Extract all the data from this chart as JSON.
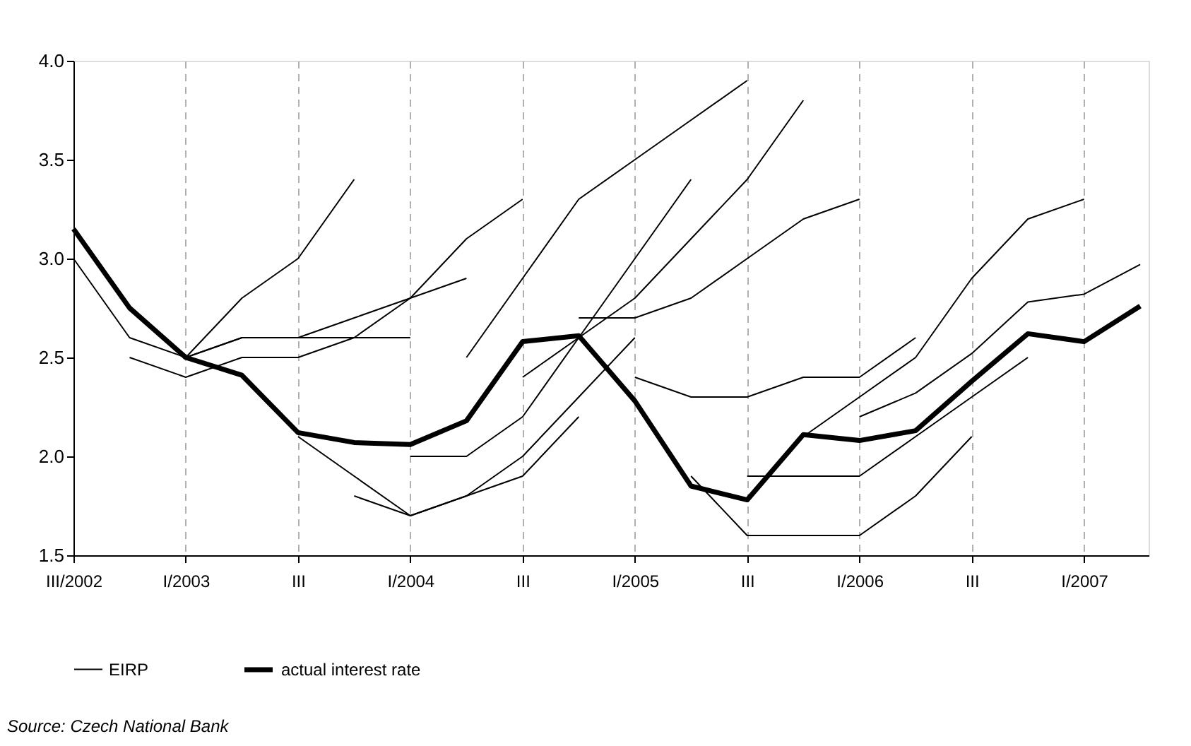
{
  "chart_data": {
    "type": "line",
    "categories": [
      "III/2002",
      null,
      "I/2003",
      null,
      "III",
      null,
      "I/2004",
      null,
      "III",
      null,
      "I/2005",
      null,
      "III",
      null,
      "I/2006",
      null,
      "III",
      null,
      "I/2007",
      null
    ],
    "ylim": [
      1.5,
      4.0
    ],
    "yticks": [
      1.5,
      {
        "value": 2,
        "label": "2.0"
      },
      2.5,
      {
        "value": 3,
        "label": "3.0"
      },
      3.5,
      {
        "value": 4,
        "label": "4.0"
      }
    ],
    "grid": "x",
    "legend": "bottom",
    "annotations": [
      "Source: Czech National Bank"
    ],
    "series": [
      {
        "name": "EIRP",
        "color": "#000000",
        "values": [
          3.0,
          2.6,
          2.5,
          2.6,
          2.6,
          2.6,
          2.6,
          null,
          null,
          null,
          null,
          null,
          null,
          null,
          null,
          null,
          null,
          null,
          null,
          null
        ]
      },
      {
        "color": "#000000",
        "values": [
          null,
          2.5,
          2.4,
          2.5,
          2.5,
          2.6,
          2.8,
          3.1,
          3.3,
          null,
          null,
          null,
          null,
          null,
          null,
          null,
          null,
          null,
          null,
          null
        ]
      },
      {
        "color": "#000000",
        "values": [
          null,
          null,
          2.5,
          2.8,
          3.0,
          3.4,
          null,
          null,
          null,
          null,
          null,
          null,
          null,
          null,
          null,
          null,
          null,
          null,
          null,
          null
        ]
      },
      {
        "color": "#000000",
        "values": [
          null,
          null,
          2.5,
          2.6,
          2.6,
          2.7,
          2.8,
          2.9,
          null,
          null,
          null,
          null,
          null,
          null,
          null,
          null,
          null,
          null,
          null,
          null
        ]
      },
      {
        "color": "#000000",
        "values": [
          null,
          null,
          null,
          null,
          2.1,
          1.9,
          1.7,
          1.8,
          1.9,
          2.2,
          null,
          null,
          null,
          null,
          null,
          null,
          null,
          null,
          null,
          null
        ]
      },
      {
        "color": "#000000",
        "values": [
          null,
          null,
          null,
          null,
          null,
          1.8,
          1.7,
          1.8,
          2.0,
          2.3,
          2.6,
          null,
          null,
          null,
          null,
          null,
          null,
          null,
          null,
          null
        ]
      },
      {
        "color": "#000000",
        "values": [
          null,
          null,
          null,
          null,
          null,
          null,
          2.0,
          2.0,
          2.2,
          2.6,
          3.0,
          3.4,
          null,
          null,
          null,
          null,
          null,
          null,
          null,
          null
        ]
      },
      {
        "color": "#000000",
        "values": [
          null,
          null,
          null,
          null,
          null,
          null,
          null,
          2.5,
          2.9,
          3.3,
          3.5,
          3.7,
          3.9,
          null,
          null,
          null,
          null,
          null,
          null,
          null
        ]
      },
      {
        "color": "#000000",
        "values": [
          null,
          null,
          null,
          null,
          null,
          null,
          null,
          null,
          2.4,
          2.6,
          2.8,
          3.1,
          3.4,
          3.8,
          null,
          null,
          null,
          null,
          null,
          null
        ]
      },
      {
        "color": "#000000",
        "values": [
          null,
          null,
          null,
          null,
          null,
          null,
          null,
          null,
          null,
          2.7,
          2.7,
          2.8,
          3.0,
          3.2,
          3.3,
          null,
          null,
          null,
          null,
          null
        ]
      },
      {
        "color": "#000000",
        "values": [
          null,
          null,
          null,
          null,
          null,
          null,
          null,
          null,
          null,
          null,
          2.4,
          2.3,
          2.3,
          2.4,
          2.4,
          2.6,
          null,
          null,
          null,
          null
        ]
      },
      {
        "color": "#000000",
        "values": [
          null,
          null,
          null,
          null,
          null,
          null,
          null,
          null,
          null,
          null,
          null,
          1.9,
          1.6,
          1.6,
          1.6,
          1.8,
          2.1,
          null,
          null,
          null
        ]
      },
      {
        "color": "#000000",
        "values": [
          null,
          null,
          null,
          null,
          null,
          null,
          null,
          null,
          null,
          null,
          null,
          null,
          1.9,
          1.9,
          1.9,
          2.1,
          2.3,
          2.5,
          null,
          null
        ]
      },
      {
        "color": "#000000",
        "values": [
          null,
          null,
          null,
          null,
          null,
          null,
          null,
          null,
          null,
          null,
          null,
          null,
          null,
          2.1,
          2.3,
          2.5,
          2.9,
          3.2,
          3.3,
          null
        ]
      },
      {
        "color": "#000000",
        "values": [
          null,
          null,
          null,
          null,
          null,
          null,
          null,
          null,
          null,
          null,
          null,
          null,
          null,
          null,
          2.2,
          2.32,
          2.52,
          2.78,
          2.82,
          2.97
        ]
      },
      {
        "name": "actual interest rate",
        "color": "#000000",
        "values": [
          3.15,
          2.75,
          2.5,
          2.41,
          2.12,
          2.07,
          2.06,
          2.18,
          2.58,
          2.61,
          2.28,
          1.85,
          1.78,
          2.11,
          2.08,
          2.13,
          2.38,
          2.62,
          2.58,
          2.76
        ]
      }
    ]
  }
}
